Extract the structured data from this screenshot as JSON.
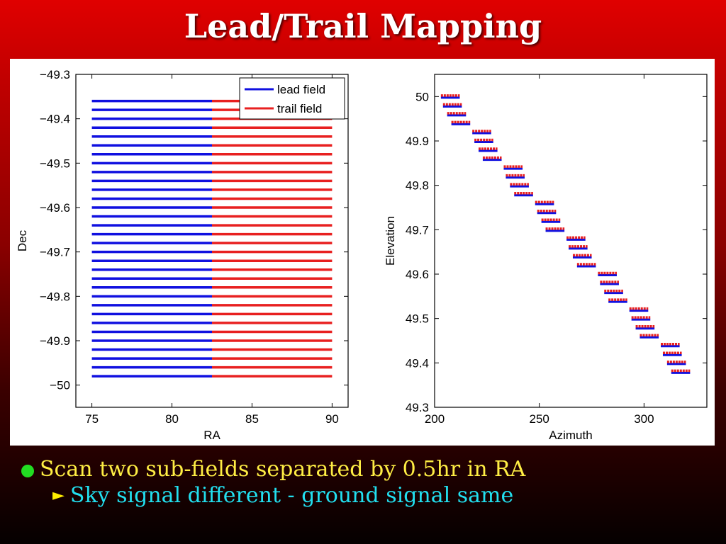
{
  "slide": {
    "title": "Lead/Trail Mapping",
    "bullet1": "Scan two sub-fields separated by 0.5hr in RA",
    "bullet2": "Sky signal different - ground signal same"
  },
  "colors": {
    "lead": "#1010e0",
    "trail": "#e82020",
    "bullet_dot": "#22dd22",
    "bullet1_text": "#ffee44",
    "bullet2_text": "#22e0f0",
    "arrow": "#ffee00"
  },
  "icons": {
    "bullet1": "green-circle-bullet-icon",
    "bullet2": "yellow-triangle-bullet-icon"
  },
  "chart_data": [
    {
      "type": "line",
      "xlabel": "RA",
      "ylabel": "Dec",
      "xlim": [
        74,
        91
      ],
      "ylim": [
        -50.05,
        -49.3
      ],
      "xticks": [
        75,
        80,
        85,
        90
      ],
      "yticks": [
        -49.3,
        -49.4,
        -49.5,
        -49.6,
        -49.7,
        -49.8,
        -49.9,
        -50
      ],
      "ytick_labels": [
        "−49.3",
        "−49.4",
        "−49.5",
        "−49.6",
        "−49.7",
        "−49.8",
        "−49.9",
        "−50"
      ],
      "legend": {
        "position": "top-right",
        "entries": [
          "lead field",
          "trail field"
        ]
      },
      "series": [
        {
          "name": "lead field",
          "x_range": [
            75,
            82.5
          ],
          "dec_rows": [
            -49.36,
            -49.38,
            -49.4,
            -49.42,
            -49.44,
            -49.46,
            -49.48,
            -49.5,
            -49.52,
            -49.54,
            -49.56,
            -49.58,
            -49.6,
            -49.62,
            -49.64,
            -49.66,
            -49.68,
            -49.7,
            -49.72,
            -49.74,
            -49.76,
            -49.78,
            -49.8,
            -49.82,
            -49.84,
            -49.86,
            -49.88,
            -49.9,
            -49.92,
            -49.94,
            -49.96,
            -49.98
          ]
        },
        {
          "name": "trail field",
          "x_range": [
            82.5,
            90
          ],
          "dec_rows": [
            -49.36,
            -49.38,
            -49.4,
            -49.42,
            -49.44,
            -49.46,
            -49.48,
            -49.5,
            -49.52,
            -49.54,
            -49.56,
            -49.58,
            -49.6,
            -49.62,
            -49.64,
            -49.66,
            -49.68,
            -49.7,
            -49.72,
            -49.74,
            -49.76,
            -49.78,
            -49.8,
            -49.82,
            -49.84,
            -49.86,
            -49.88,
            -49.9,
            -49.92,
            -49.94,
            -49.96,
            -49.98
          ]
        }
      ]
    },
    {
      "type": "line",
      "xlabel": "Azimuth",
      "ylabel": "Elevation",
      "xlim": [
        200,
        330
      ],
      "ylim": [
        49.3,
        50.05
      ],
      "xticks": [
        200,
        250,
        300
      ],
      "yticks": [
        49.3,
        49.4,
        49.5,
        49.6,
        49.7,
        49.8,
        49.9,
        50
      ],
      "ytick_labels": [
        "49.3",
        "49.4",
        "49.5",
        "49.6",
        "49.7",
        "49.8",
        "49.9",
        "50"
      ],
      "scan_segments": [
        {
          "az": [
            203,
            212
          ],
          "el": 50.0
        },
        {
          "az": [
            204,
            213
          ],
          "el": 49.98
        },
        {
          "az": [
            206,
            215
          ],
          "el": 49.96
        },
        {
          "az": [
            208,
            217
          ],
          "el": 49.94
        },
        {
          "az": [
            218,
            227
          ],
          "el": 49.92
        },
        {
          "az": [
            219,
            228
          ],
          "el": 49.9
        },
        {
          "az": [
            221,
            230
          ],
          "el": 49.88
        },
        {
          "az": [
            223,
            232
          ],
          "el": 49.86
        },
        {
          "az": [
            233,
            242
          ],
          "el": 49.84
        },
        {
          "az": [
            234,
            243
          ],
          "el": 49.82
        },
        {
          "az": [
            236,
            245
          ],
          "el": 49.8
        },
        {
          "az": [
            238,
            247
          ],
          "el": 49.78
        },
        {
          "az": [
            248,
            257
          ],
          "el": 49.76
        },
        {
          "az": [
            249,
            258
          ],
          "el": 49.74
        },
        {
          "az": [
            251,
            260
          ],
          "el": 49.72
        },
        {
          "az": [
            253,
            262
          ],
          "el": 49.7
        },
        {
          "az": [
            263,
            272
          ],
          "el": 49.68
        },
        {
          "az": [
            264,
            273
          ],
          "el": 49.66
        },
        {
          "az": [
            266,
            275
          ],
          "el": 49.64
        },
        {
          "az": [
            268,
            277
          ],
          "el": 49.62
        },
        {
          "az": [
            278,
            287
          ],
          "el": 49.6
        },
        {
          "az": [
            279,
            288
          ],
          "el": 49.58
        },
        {
          "az": [
            281,
            290
          ],
          "el": 49.56
        },
        {
          "az": [
            283,
            292
          ],
          "el": 49.54
        },
        {
          "az": [
            293,
            302
          ],
          "el": 49.52
        },
        {
          "az": [
            294,
            303
          ],
          "el": 49.5
        },
        {
          "az": [
            296,
            305
          ],
          "el": 49.48
        },
        {
          "az": [
            298,
            307
          ],
          "el": 49.46
        },
        {
          "az": [
            308,
            317
          ],
          "el": 49.44
        },
        {
          "az": [
            309,
            318
          ],
          "el": 49.42
        },
        {
          "az": [
            311,
            320
          ],
          "el": 49.4
        },
        {
          "az": [
            313,
            322
          ],
          "el": 49.38
        }
      ]
    }
  ]
}
